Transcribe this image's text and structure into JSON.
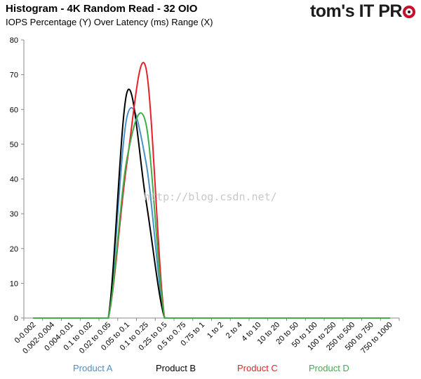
{
  "header": {
    "title": "Histogram - 4K Random Read - 32 OIO",
    "subtitle": "IOPS Percentage (Y) Over Latency (ms) Range (X)",
    "brand_main": "tom's",
    "brand_it": "IT PR",
    "brand_o_icon": "target-ring-icon"
  },
  "watermark": "http://blog.csdn.net/",
  "chart_data": {
    "type": "line",
    "title": "Histogram - 4K Random Read - 32 OIO",
    "subtitle": "IOPS Percentage (Y) Over Latency (ms) Range (X)",
    "xlabel": "",
    "ylabel": "",
    "ylim": [
      0,
      80
    ],
    "yticks": [
      "0",
      "10",
      "20",
      "30",
      "40",
      "50",
      "60",
      "70",
      "80"
    ],
    "grid": false,
    "legend_position": "bottom",
    "categories": [
      "0-0.002",
      "0.002-0.004",
      "0.004-0.01",
      "0.1 to 0.02",
      "0.02 to 0.05",
      "0.05 to 0.1",
      "0.1 to 0.25",
      "0.25 to 0.5",
      "0.5 to 0.75",
      "0.75 to 1",
      "1 to 2",
      "2 to 4",
      "4 to 10",
      "10 to 20",
      "20 to 50",
      "50 to 100",
      "100 to 250",
      "250 to 500",
      "500 to 750",
      "750 to 1000"
    ],
    "series": [
      {
        "name": "Product A",
        "color": "#4a90c8",
        "values": [
          0,
          0,
          0,
          0,
          0,
          58,
          45,
          0,
          0,
          0,
          0,
          0,
          0,
          0,
          0,
          0,
          0,
          0,
          0,
          0
        ]
      },
      {
        "name": "Product B",
        "color": "#000000",
        "values": [
          0,
          0,
          0,
          0,
          0,
          65,
          34,
          0,
          0,
          0,
          0,
          0,
          0,
          0,
          0,
          0,
          0,
          0,
          0,
          0
        ]
      },
      {
        "name": "Product C",
        "color": "#e8202a",
        "values": [
          0,
          0,
          0,
          0,
          0,
          45,
          72,
          0,
          0,
          0,
          0,
          0,
          0,
          0,
          0,
          0,
          0,
          0,
          0,
          0
        ]
      },
      {
        "name": "Product D",
        "color": "#3cae4a",
        "values": [
          0,
          0,
          0,
          0,
          0,
          46,
          56,
          0,
          0,
          0,
          0,
          0,
          0,
          0,
          0,
          0,
          0,
          0,
          0,
          0
        ]
      }
    ]
  }
}
